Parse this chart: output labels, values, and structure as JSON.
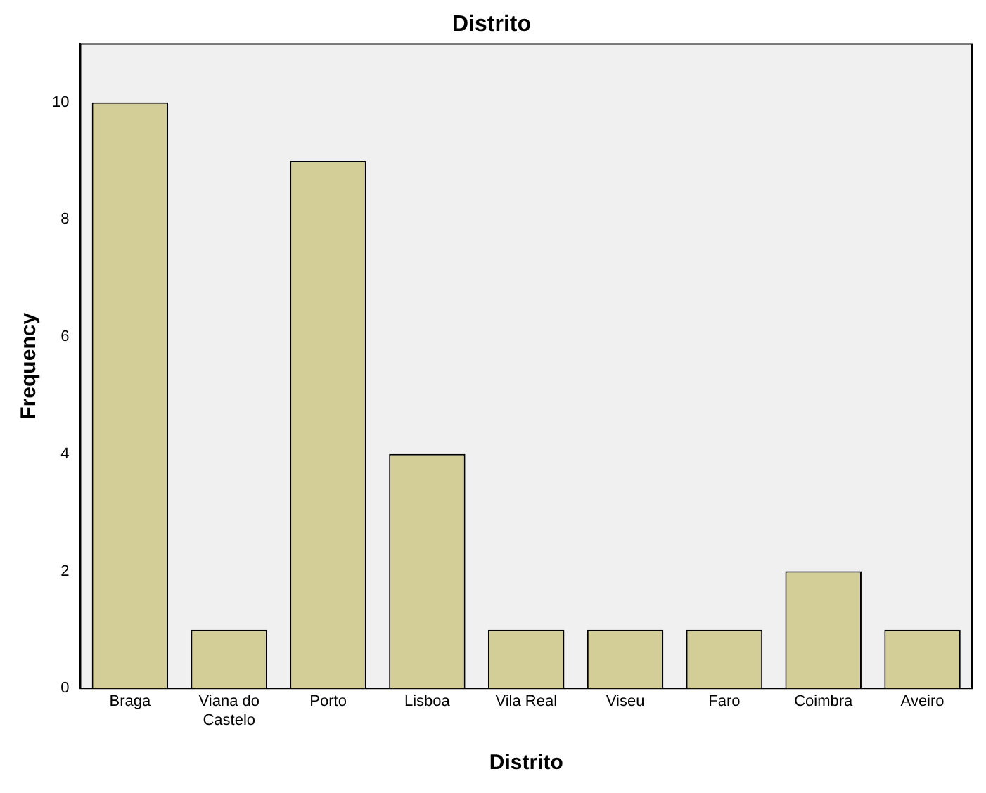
{
  "chart_data": {
    "type": "bar",
    "title": "Distrito",
    "xlabel": "Distrito",
    "ylabel": "Frequency",
    "categories": [
      "Braga",
      "Viana do Castelo",
      "Porto",
      "Lisboa",
      "Vila Real",
      "Viseu",
      "Faro",
      "Coimbra",
      "Aveiro"
    ],
    "values": [
      10,
      1,
      9,
      4,
      1,
      1,
      1,
      2,
      1
    ],
    "color": "#d3ce98",
    "ylim": [
      0,
      11
    ],
    "yticks": [
      0,
      2,
      4,
      6,
      8,
      10
    ],
    "grid": false,
    "legend": false
  }
}
